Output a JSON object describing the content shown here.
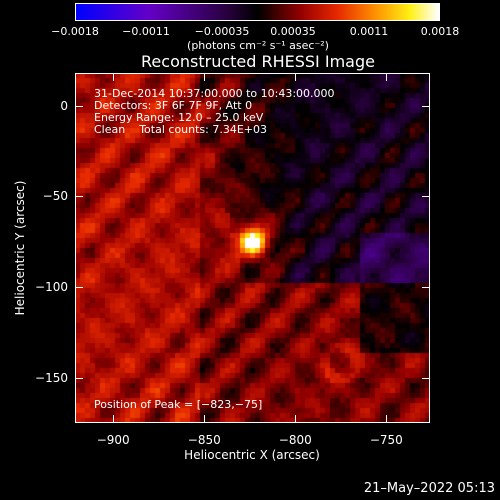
{
  "chart_data": {
    "type": "heatmap",
    "title": "Reconstructed RHESSI Image",
    "xlabel": "Heliocentric X (arcsec)",
    "ylabel": "Heliocentric Y (arcsec)",
    "xlim": [
      -921,
      -726
    ],
    "ylim": [
      -175,
      18
    ],
    "x_ticks": [
      -900,
      -850,
      -800,
      -750
    ],
    "y_ticks": [
      0,
      -50,
      -100,
      -150
    ],
    "x_tick_labels": [
      "−900",
      "−850",
      "−800",
      "−750"
    ],
    "y_tick_labels": [
      "0",
      "−50",
      "−100",
      "−150"
    ],
    "colorbar": {
      "range": [
        -0.0018,
        0.0018
      ],
      "tick_values": [
        -0.0018,
        -0.0011,
        -0.00035,
        0.00035,
        0.0011,
        0.0018
      ],
      "tick_labels": [
        "−0.0018",
        "−0.0011",
        "−0.00035",
        "0.00035",
        "0.0011",
        "0.0018"
      ],
      "units": "(photons cm⁻² s⁻¹ asec⁻²)"
    },
    "peak": {
      "x": -823,
      "y": -75,
      "value": 0.0018
    },
    "annotations": {
      "time": "31-Dec-2014 10:37:00.000 to 10:43:00.000",
      "detectors": "Detectors: 3F 6F 7F 9F, Att 0",
      "energy": "Energy Range: 12.0 – 25.0 keV",
      "method": "Clean    Total counts: 7.34E+03",
      "peak_text": "Position of Peak = [−823,−75]"
    },
    "colormap": "red-temperature (blue-purple-black-red-yellow-white)"
  },
  "footer": {
    "timestamp": "21–May–2022 05:13"
  }
}
